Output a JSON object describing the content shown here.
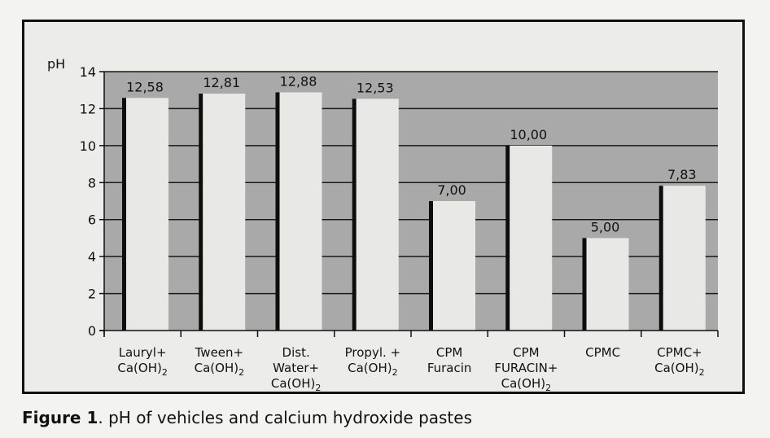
{
  "figure": {
    "caption_label": "Figure 1",
    "caption_text": ". pH of vehicles and calcium hydroxide pastes"
  },
  "colors": {
    "plot_background": "#a9a9a9",
    "bar_face": "#e8e8e6",
    "bar_shadow": "#0d0d0d",
    "gridline": "#1a1a1a"
  },
  "chart_data": {
    "type": "bar",
    "ylabel": "pH",
    "ylim": [
      0,
      14
    ],
    "yticks": [
      0,
      2,
      4,
      6,
      8,
      10,
      12,
      14
    ],
    "grid": true,
    "categories": [
      [
        "Lauryl+",
        "Ca(OH)|2"
      ],
      [
        "Tween+",
        "Ca(OH)|2"
      ],
      [
        "Dist.",
        "Water+",
        "Ca(OH)|2"
      ],
      [
        "Propyl. +",
        "Ca(OH)|2"
      ],
      [
        "CPM",
        "Furacin"
      ],
      [
        "CPM",
        "FURACIN+",
        "Ca(OH)|2"
      ],
      [
        "CPMC"
      ],
      [
        "CPMC+",
        "Ca(OH)|2"
      ]
    ],
    "values": [
      12.58,
      12.81,
      12.88,
      12.53,
      7.0,
      10.0,
      5.0,
      7.83
    ],
    "data_labels": [
      "12,58",
      "12,81",
      "12,88",
      "12,53",
      "7,00",
      "10,00",
      "5,00",
      "7,83"
    ]
  }
}
